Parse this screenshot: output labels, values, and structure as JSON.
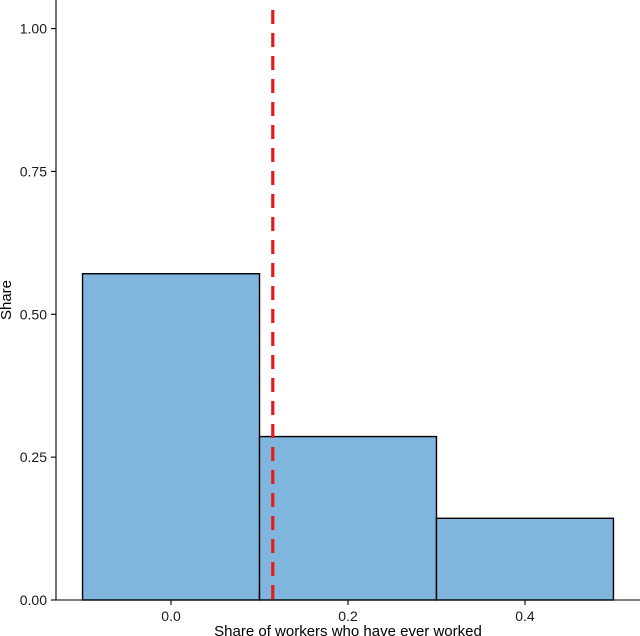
{
  "chart_data": {
    "type": "bar",
    "xlabel": "Share of workers who have ever worked",
    "ylabel": "Share",
    "bins": [
      {
        "x_start": -0.1,
        "x_end": 0.1,
        "value": 0.571
      },
      {
        "x_start": 0.1,
        "x_end": 0.3,
        "value": 0.286
      },
      {
        "x_start": 0.3,
        "x_end": 0.5,
        "value": 0.143
      }
    ],
    "xlim": [
      -0.13,
      0.53
    ],
    "ylim": [
      0,
      1.05
    ],
    "x_ticks": [
      {
        "value": 0.0,
        "label": "0.0"
      },
      {
        "value": 0.2,
        "label": "0.2"
      },
      {
        "value": 0.4,
        "label": "0.4"
      }
    ],
    "y_ticks": [
      {
        "value": 0.0,
        "label": "0.00"
      },
      {
        "value": 0.25,
        "label": "0.25"
      },
      {
        "value": 0.5,
        "label": "0.50"
      },
      {
        "value": 0.75,
        "label": "0.75"
      },
      {
        "value": 1.0,
        "label": "1.00"
      }
    ],
    "reference_line": {
      "x": 0.115,
      "style": "dashed",
      "color": "#e41a1c"
    },
    "bar_fill": "#80b6dd",
    "bar_stroke": "#000000",
    "grid": false,
    "legend": "none"
  }
}
